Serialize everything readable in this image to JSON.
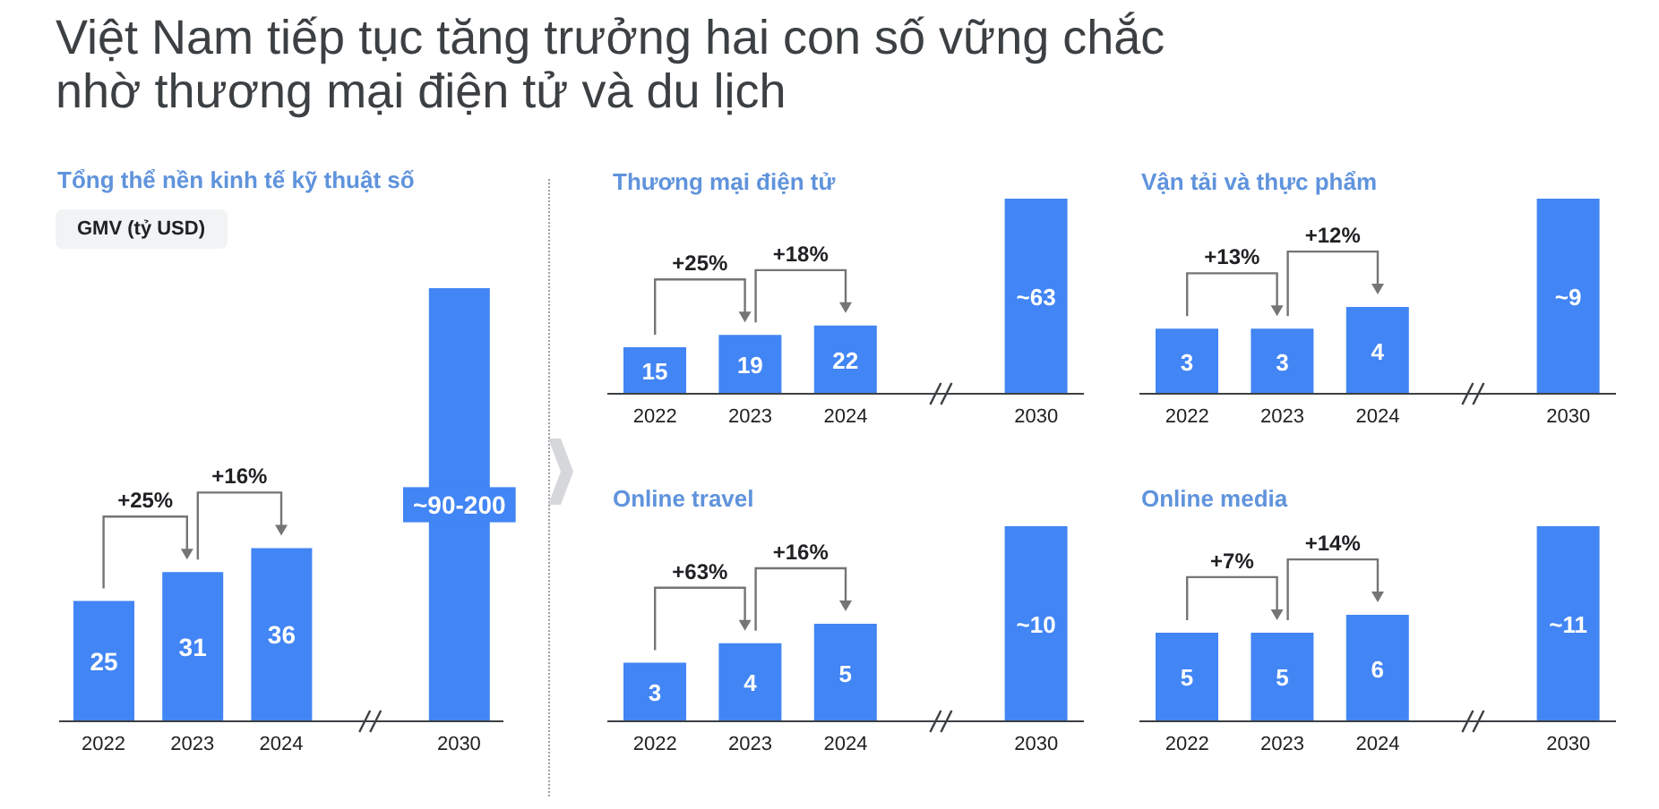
{
  "chart_data": [
    {
      "type": "bar",
      "title": "Việt Nam tiếp tục tăng trưởng hai con số vững chắc nhờ thương mại điện tử và du lịch",
      "subtitle": "Tổng thể nền kinh tế kỹ thuật số",
      "ylabel": "GMV (tỷ USD)",
      "categories": [
        "2022",
        "2023",
        "2024",
        null,
        "2030"
      ],
      "values": [
        25,
        31,
        36,
        null,
        90
      ],
      "value_labels": [
        "25",
        "31",
        "36",
        null,
        "~90-200"
      ],
      "color": "#4285f4",
      "annotations": [
        "+25%",
        "+16%"
      ]
    },
    {
      "type": "bar",
      "title": "Thương mại điện tử",
      "categories": [
        "2022",
        "2023",
        "2024",
        null,
        "2030"
      ],
      "values": [
        15,
        19,
        22,
        null,
        63
      ],
      "value_labels": [
        "15",
        "19",
        "22",
        null,
        "~63"
      ],
      "color": "#4285f4",
      "annotations": [
        "+25%",
        "+18%"
      ]
    },
    {
      "type": "bar",
      "title": "Vận tải và thực phẩm",
      "categories": [
        "2022",
        "2023",
        "2024",
        null,
        "2030"
      ],
      "values": [
        3,
        3,
        4,
        null,
        9
      ],
      "value_labels": [
        "3",
        "3",
        "4",
        null,
        "~9"
      ],
      "color": "#4285f4",
      "annotations": [
        "+13%",
        "+12%"
      ]
    },
    {
      "type": "bar",
      "title": "Online travel",
      "categories": [
        "2022",
        "2023",
        "2024",
        null,
        "2030"
      ],
      "values": [
        3,
        4,
        5,
        null,
        10
      ],
      "value_labels": [
        "3",
        "4",
        "5",
        null,
        "~10"
      ],
      "color": "#4285f4",
      "annotations": [
        "+63%",
        "+16%"
      ]
    },
    {
      "type": "bar",
      "title": "Online media",
      "categories": [
        "2022",
        "2023",
        "2024",
        null,
        "2030"
      ],
      "values": [
        5,
        5,
        6,
        null,
        11
      ],
      "value_labels": [
        "5",
        "5",
        "6",
        null,
        "~11"
      ],
      "color": "#4285f4",
      "annotations": [
        "+7%",
        "+14%"
      ]
    }
  ]
}
